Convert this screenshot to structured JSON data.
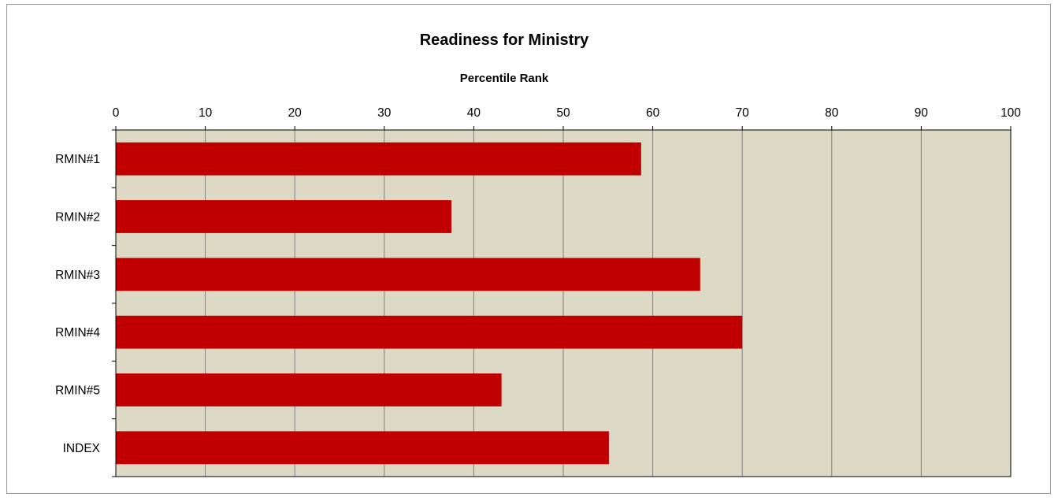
{
  "chart_data": {
    "type": "bar",
    "orientation": "horizontal",
    "title": "Readiness for Ministry",
    "xlabel": "Percentile Rank",
    "ylabel": "",
    "categories": [
      "RMIN#1",
      "RMIN#2",
      "RMIN#3",
      "RMIN#4",
      "RMIN#5",
      "INDEX"
    ],
    "values": [
      58.7,
      37.5,
      65.3,
      70,
      43.1,
      55.1
    ],
    "xlim": [
      0,
      100
    ],
    "xticks": [
      0,
      10,
      20,
      30,
      40,
      50,
      60,
      70,
      80,
      90,
      100
    ],
    "x_axis_position": "top",
    "grid": true,
    "legend": "none",
    "colors": {
      "bar": "#c00000",
      "plot_background": "#ddd9c4",
      "gridline": "#808080"
    }
  }
}
